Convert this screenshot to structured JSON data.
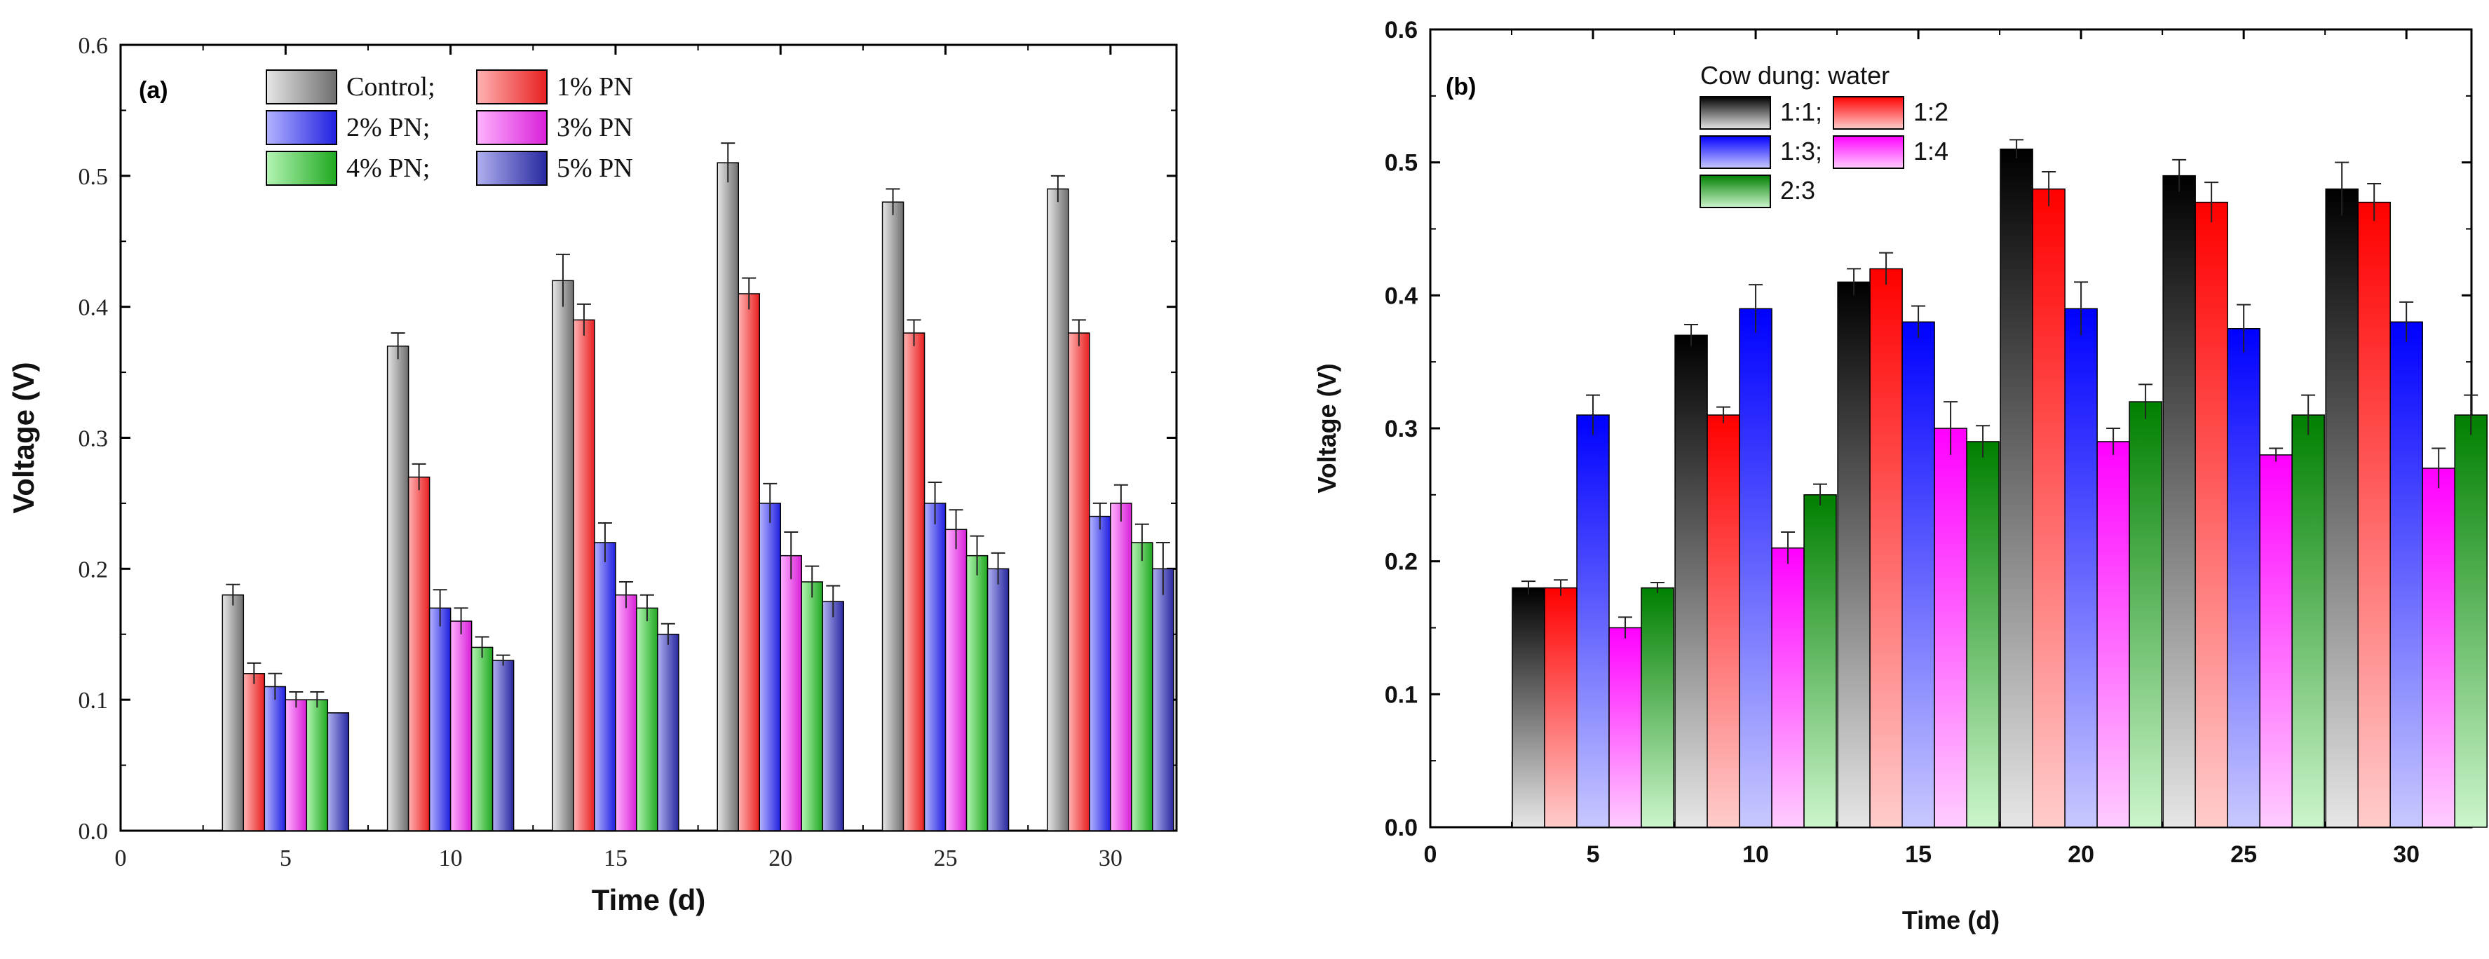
{
  "chart_data": [
    {
      "panel": "(a)",
      "type": "bar",
      "xlabel": "Time (d)",
      "ylabel": "Voltage (V)",
      "xlim": [
        0,
        32
      ],
      "ylim": [
        0,
        0.6
      ],
      "x_ticks": [
        "0",
        "5",
        "10",
        "15",
        "20",
        "25",
        "30"
      ],
      "y_ticks": [
        "0.0",
        "0.1",
        "0.2",
        "0.3",
        "0.4",
        "0.5",
        "0.6"
      ],
      "categories": [
        5,
        10,
        15,
        20,
        25,
        30
      ],
      "legend_labels": [
        "Control;",
        "1% PN",
        "2% PN;",
        "3% PN",
        "4% PN;",
        "5% PN"
      ],
      "series": [
        {
          "name": "Control",
          "color": "#808080",
          "values": [
            0.18,
            0.37,
            0.42,
            0.51,
            0.48,
            0.49
          ],
          "errors": [
            0.008,
            0.01,
            0.02,
            0.015,
            0.01,
            0.01
          ]
        },
        {
          "name": "1% PN",
          "color": "#f03a3a",
          "values": [
            0.12,
            0.27,
            0.39,
            0.41,
            0.38,
            0.38
          ],
          "errors": [
            0.008,
            0.01,
            0.012,
            0.012,
            0.01,
            0.01
          ]
        },
        {
          "name": "2% PN",
          "color": "#3b3bf0",
          "values": [
            0.11,
            0.17,
            0.22,
            0.25,
            0.25,
            0.24
          ],
          "errors": [
            0.01,
            0.014,
            0.015,
            0.015,
            0.016,
            0.01
          ]
        },
        {
          "name": "3% PN",
          "color": "#e83ae8",
          "values": [
            0.1,
            0.16,
            0.18,
            0.21,
            0.23,
            0.25
          ],
          "errors": [
            0.006,
            0.01,
            0.01,
            0.018,
            0.015,
            0.014
          ]
        },
        {
          "name": "4% PN",
          "color": "#2eb82e",
          "values": [
            0.1,
            0.14,
            0.17,
            0.19,
            0.21,
            0.22
          ],
          "errors": [
            0.006,
            0.008,
            0.01,
            0.012,
            0.015,
            0.014
          ]
        },
        {
          "name": "5% PN",
          "color": "#3b3bbf",
          "values": [
            0.09,
            0.13,
            0.15,
            0.175,
            0.2,
            0.2
          ],
          "errors": [
            0.0,
            0.004,
            0.008,
            0.012,
            0.012,
            0.02
          ]
        }
      ]
    },
    {
      "panel": "(b)",
      "type": "bar",
      "xlabel": "Time (d)",
      "ylabel": "Voltage (V)",
      "xlim": [
        0,
        32
      ],
      "ylim": [
        0,
        0.6
      ],
      "x_ticks": [
        "0",
        "5",
        "10",
        "15",
        "20",
        "25",
        "30"
      ],
      "y_ticks": [
        "0.0",
        "0.1",
        "0.2",
        "0.3",
        "0.4",
        "0.5",
        "0.6"
      ],
      "categories": [
        5,
        10,
        15,
        20,
        25,
        30
      ],
      "legend_title": "Cow dung: water",
      "legend_labels": [
        "1:1;",
        "1:2",
        "1:3;",
        "1:4",
        "2:3"
      ],
      "series": [
        {
          "name": "1:1",
          "color": "#111111",
          "values": [
            0.18,
            0.37,
            0.41,
            0.51,
            0.49,
            0.48
          ],
          "errors": [
            0.005,
            0.008,
            0.01,
            0.007,
            0.012,
            0.02
          ]
        },
        {
          "name": "1:2",
          "color": "#ff1a1a",
          "values": [
            0.18,
            0.31,
            0.42,
            0.48,
            0.47,
            0.47
          ],
          "errors": [
            0.006,
            0.006,
            0.012,
            0.013,
            0.015,
            0.014
          ]
        },
        {
          "name": "1:3",
          "color": "#1a1aff",
          "values": [
            0.31,
            0.39,
            0.38,
            0.39,
            0.375,
            0.38
          ],
          "errors": [
            0.015,
            0.018,
            0.012,
            0.02,
            0.018,
            0.015
          ]
        },
        {
          "name": "1:4",
          "color": "#ff33ff",
          "values": [
            0.15,
            0.21,
            0.3,
            0.29,
            0.28,
            0.27
          ],
          "errors": [
            0.008,
            0.012,
            0.02,
            0.01,
            0.005,
            0.015
          ]
        },
        {
          "name": "2:3",
          "color": "#1a8c1a",
          "values": [
            0.18,
            0.25,
            0.29,
            0.32,
            0.31,
            0.31
          ],
          "errors": [
            0.004,
            0.008,
            0.012,
            0.013,
            0.015,
            0.015
          ]
        }
      ]
    }
  ]
}
